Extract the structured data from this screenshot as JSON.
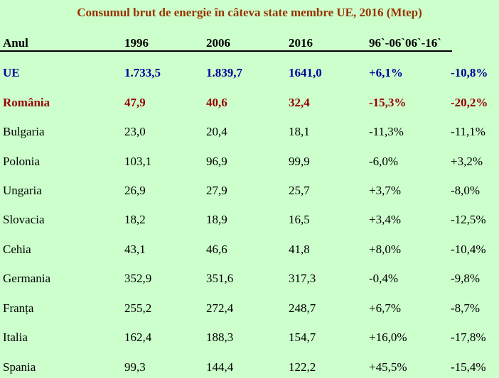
{
  "title": "Consumul brut de energie în câteva state membre UE, 2016 (Mtep)",
  "header": {
    "col_name": "Anul",
    "col_1996": "1996",
    "col_2006": "2006",
    "col_2016": "2016",
    "col_diff": "96`-06`06`-16`"
  },
  "rows": [
    {
      "name": "UE",
      "v1996": "1.733,5",
      "v2006": "1.839,7",
      "v2016": "1641,0",
      "d1": "+6,1%",
      "d2": "-10,8%"
    },
    {
      "name": "România",
      "v1996": "47,9",
      "v2006": "40,6",
      "v2016": "32,4",
      "d1": "-15,3%",
      "d2": "-20,2%"
    },
    {
      "name": "Bulgaria",
      "v1996": "23,0",
      "v2006": "20,4",
      "v2016": "18,1",
      "d1": "-11,3%",
      "d2": "-11,1%"
    },
    {
      "name": "Polonia",
      "v1996": "103,1",
      "v2006": "96,9",
      "v2016": "99,9",
      "d1": "-6,0%",
      "d2": "+3,2%"
    },
    {
      "name": "Ungaria",
      "v1996": "26,9",
      "v2006": "27,9",
      "v2016": "25,7",
      "d1": "+3,7%",
      "d2": "-8,0%"
    },
    {
      "name": "Slovacia",
      "v1996": "18,2",
      "v2006": "18,9",
      "v2016": "16,5",
      "d1": "+3,4%",
      "d2": "-12,5%"
    },
    {
      "name": "Cehia",
      "v1996": "43,1",
      "v2006": "46,6",
      "v2016": "41,8",
      "d1": "+8,0%",
      "d2": "-10,4%"
    },
    {
      "name": "Germania",
      "v1996": "352,9",
      "v2006": "351,6",
      "v2016": "317,3",
      "d1": "-0,4%",
      "d2": "-9,8%"
    },
    {
      "name": "Franța",
      "v1996": "255,2",
      "v2006": "272,4",
      "v2016": "248,7",
      "d1": "+6,7%",
      "d2": "-8,7%"
    },
    {
      "name": "Italia",
      "v1996": "162,4",
      "v2006": "188,3",
      "v2016": "154,7",
      "d1": "+16,0%",
      "d2": "-17,8%"
    },
    {
      "name": "Spania",
      "v1996": "99,3",
      "v2006": "144,4",
      "v2016": "122,2",
      "d1": "+45,5%",
      "d2": "-15,4%"
    }
  ],
  "colors": {
    "background": "#CCFFCC",
    "title": "#993300",
    "ue_row": "#000099",
    "romania_row": "#990000"
  }
}
